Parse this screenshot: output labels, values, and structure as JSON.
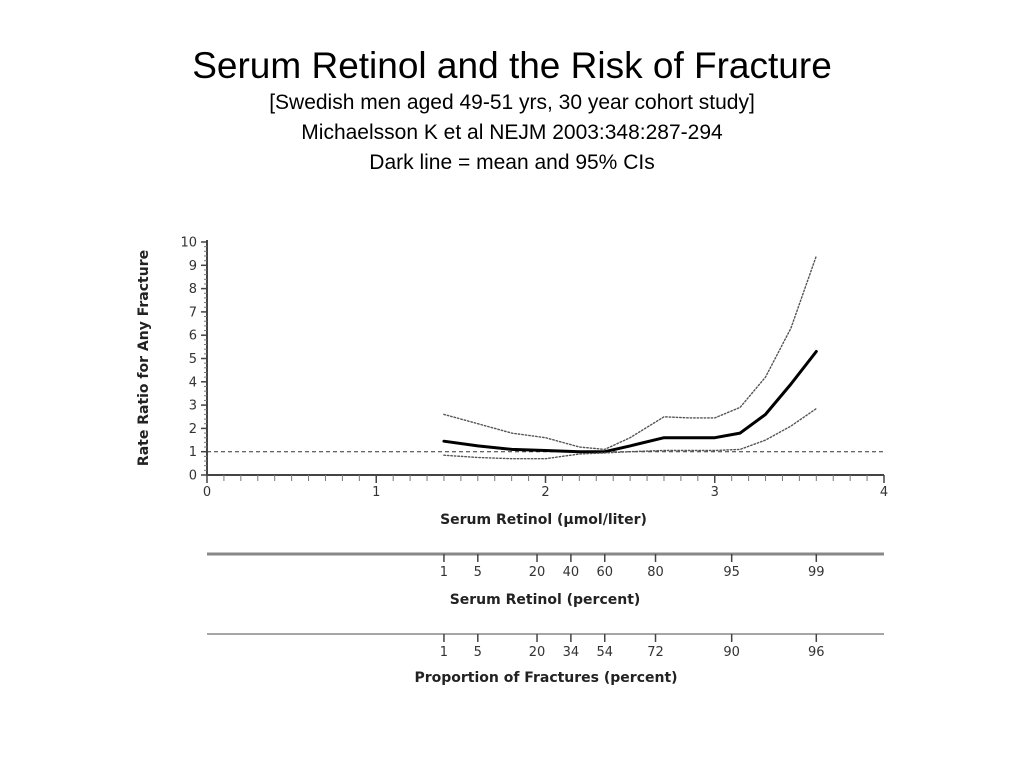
{
  "slide": {
    "title": "Serum Retinol and the Risk of Fracture",
    "subtitle_lines": [
      "[Swedish men aged 49-51 yrs, 30 year cohort study]",
      "Michaelsson K et al NEJM 2003:348:287-294",
      "Dark line = mean and 95% CIs"
    ]
  },
  "chart_data": {
    "type": "line",
    "xlabel": "Serum Retinol (μmol/liter)",
    "ylabel": "Rate Ratio for Any Fracture",
    "xlim": [
      0,
      4
    ],
    "ylim": [
      0,
      10
    ],
    "x_ticks": [
      "0",
      "1",
      "2",
      "3",
      "4"
    ],
    "y_ticks": [
      "0",
      "1",
      "2",
      "3",
      "4",
      "5",
      "6",
      "7",
      "8",
      "9",
      "10"
    ],
    "reference_line": {
      "y": 1,
      "style": "dashed"
    },
    "series": [
      {
        "role": "mean",
        "style": "solid-thick",
        "x": [
          1.4,
          1.6,
          1.8,
          2.0,
          2.2,
          2.35,
          2.5,
          2.7,
          2.85,
          3.0,
          3.15,
          3.3,
          3.45,
          3.6
        ],
        "y": [
          1.45,
          1.25,
          1.1,
          1.05,
          1.0,
          1.0,
          1.25,
          1.6,
          1.6,
          1.6,
          1.8,
          2.6,
          3.9,
          5.3
        ]
      },
      {
        "role": "upper-95-ci",
        "style": "dotted",
        "x": [
          1.4,
          1.6,
          1.8,
          2.0,
          2.2,
          2.35,
          2.5,
          2.7,
          2.85,
          3.0,
          3.15,
          3.3,
          3.45,
          3.6
        ],
        "y": [
          2.6,
          2.2,
          1.8,
          1.6,
          1.2,
          1.1,
          1.6,
          2.5,
          2.45,
          2.45,
          2.9,
          4.2,
          6.3,
          9.4
        ]
      },
      {
        "role": "lower-95-ci",
        "style": "dotted",
        "x": [
          1.4,
          1.6,
          1.8,
          2.0,
          2.2,
          2.35,
          2.5,
          2.7,
          2.85,
          3.0,
          3.15,
          3.3,
          3.45,
          3.6
        ],
        "y": [
          0.85,
          0.75,
          0.7,
          0.7,
          0.9,
          0.95,
          1.0,
          1.05,
          1.05,
          1.05,
          1.1,
          1.5,
          2.1,
          2.85
        ]
      }
    ],
    "percentile_scales": [
      {
        "label": "Serum Retinol (percent)",
        "ticks": [
          {
            "label": "1",
            "x": 1.4
          },
          {
            "label": "5",
            "x": 1.6
          },
          {
            "label": "20",
            "x": 1.95
          },
          {
            "label": "40",
            "x": 2.15
          },
          {
            "label": "60",
            "x": 2.35
          },
          {
            "label": "80",
            "x": 2.65
          },
          {
            "label": "95",
            "x": 3.1
          },
          {
            "label": "99",
            "x": 3.6
          }
        ]
      },
      {
        "label": "Proportion of Fractures (percent)",
        "ticks": [
          {
            "label": "1",
            "x": 1.4
          },
          {
            "label": "5",
            "x": 1.6
          },
          {
            "label": "20",
            "x": 1.95
          },
          {
            "label": "34",
            "x": 2.15
          },
          {
            "label": "54",
            "x": 2.35
          },
          {
            "label": "72",
            "x": 2.65
          },
          {
            "label": "90",
            "x": 3.1
          },
          {
            "label": "96",
            "x": 3.6
          }
        ]
      }
    ]
  }
}
